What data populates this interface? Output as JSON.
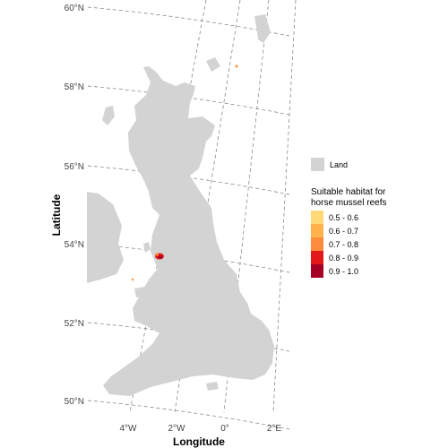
{
  "map": {
    "xlabel": "Longitude",
    "ylabel": "Latitude",
    "lat_ticks": [
      "60°N",
      "58°N",
      "56°N",
      "54°N",
      "52°N",
      "50°N"
    ],
    "lon_ticks": [
      "4°W",
      "2°W",
      "0°",
      "2°E"
    ],
    "land_color": "#d3d3d3"
  },
  "legend": {
    "land_label": "Land",
    "title_line1": "Suitable habitat for",
    "title_line2": "horse mussel reefs",
    "classes": [
      {
        "label": "0.5 - 0.6",
        "color": "#fed976"
      },
      {
        "label": "0.6 - 0.7",
        "color": "#feb24c"
      },
      {
        "label": "0.7 - 0.8",
        "color": "#fd8d3c"
      },
      {
        "label": "0.8 - 0.9",
        "color": "#e31a1c"
      },
      {
        "label": "0.9 - 1.0",
        "color": "#a50026"
      }
    ]
  }
}
